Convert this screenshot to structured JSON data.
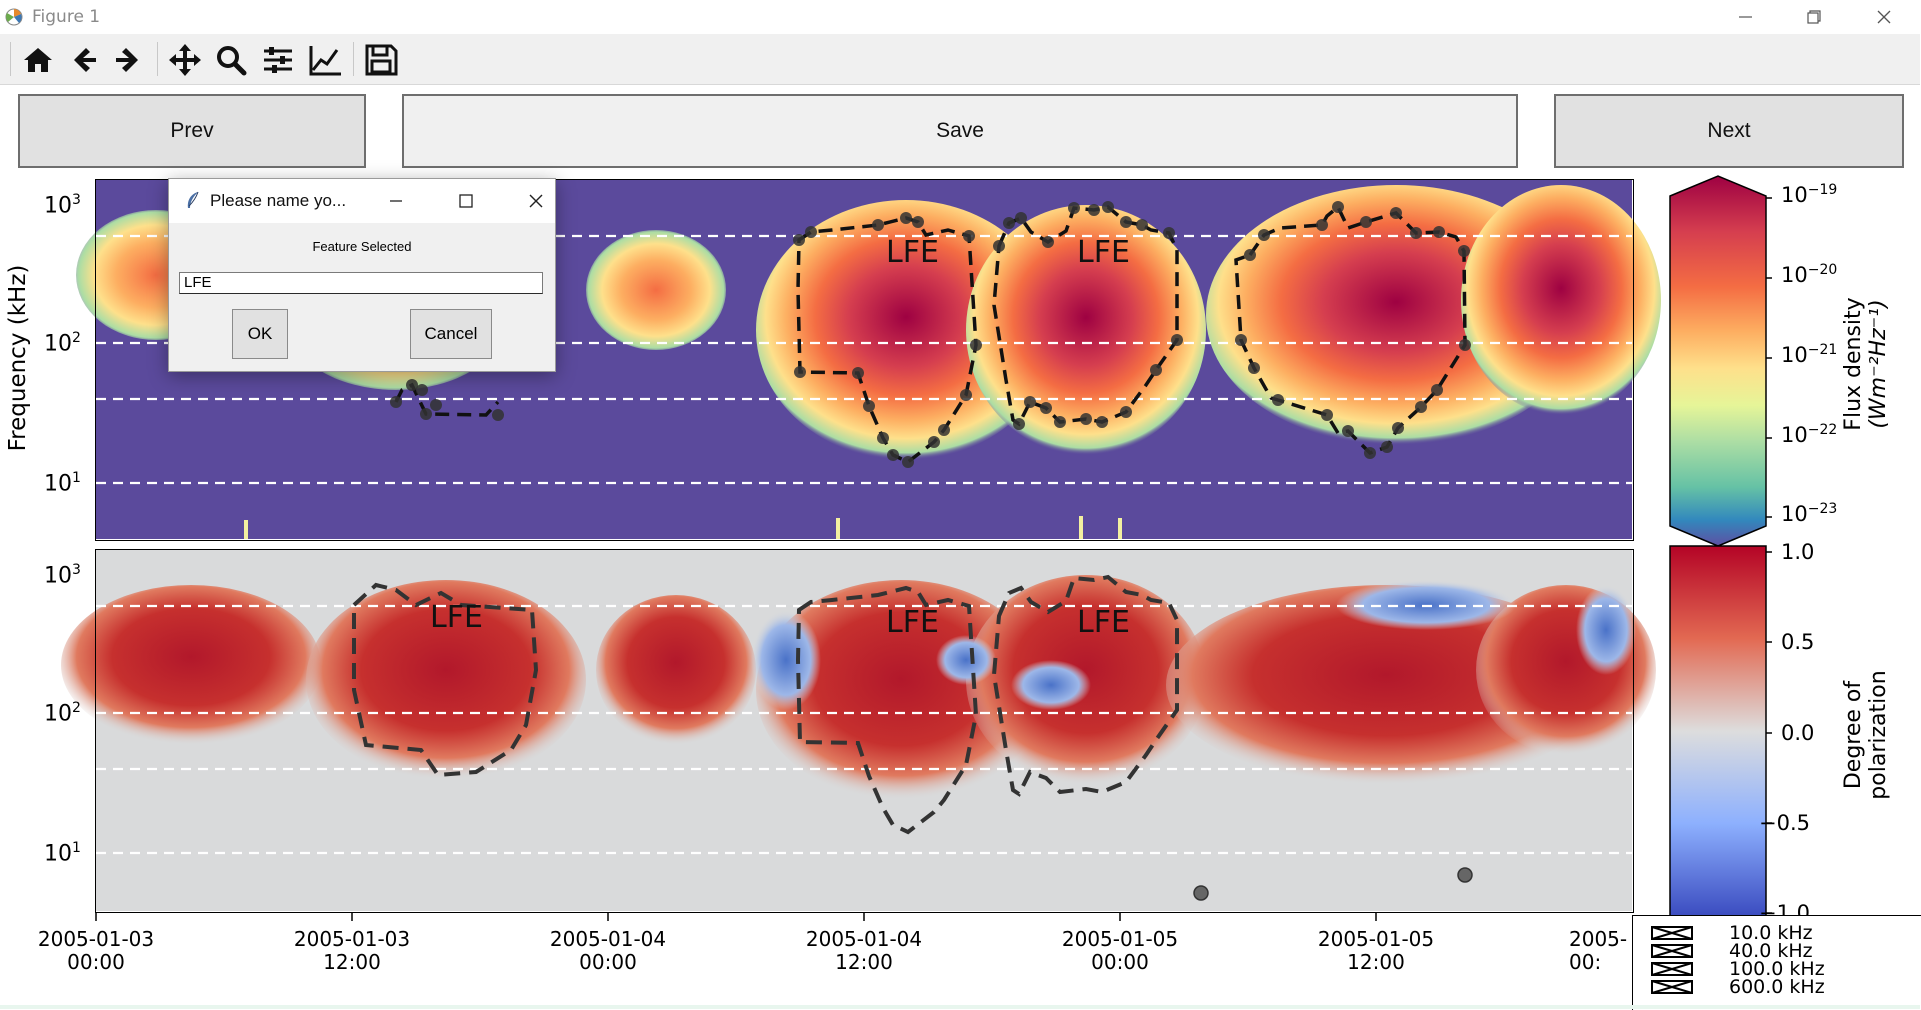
{
  "window": {
    "title": "Figure 1"
  },
  "toolbar": {
    "icons": [
      "home-icon",
      "back-arrow-icon",
      "forward-arrow-icon",
      "pan-icon",
      "zoom-icon",
      "configure-subplots-icon",
      "edit-axis-icon",
      "save-icon"
    ]
  },
  "buttons": {
    "prev": "Prev",
    "save": "Save",
    "next": "Next"
  },
  "top_axis": {
    "ylabel": "Frequency (kHz)",
    "yticks": [
      {
        "base": "10",
        "exp": "3"
      },
      {
        "base": "10",
        "exp": "2"
      },
      {
        "base": "10",
        "exp": "1"
      }
    ]
  },
  "bottom_axis": {
    "yticks": [
      {
        "base": "10",
        "exp": "3"
      },
      {
        "base": "10",
        "exp": "2"
      },
      {
        "base": "10",
        "exp": "1"
      }
    ]
  },
  "xticks": [
    {
      "date": "2005-01-03",
      "time": "00:00"
    },
    {
      "date": "2005-01-03",
      "time": "12:00"
    },
    {
      "date": "2005-01-04",
      "time": "00:00"
    },
    {
      "date": "2005-01-04",
      "time": "12:00"
    },
    {
      "date": "2005-01-05",
      "time": "00:00"
    },
    {
      "date": "2005-01-05",
      "time": "12:00"
    },
    {
      "date": "2005-",
      "time": "00:"
    }
  ],
  "feature_labels": [
    "LFE",
    "LFE",
    "LFE",
    "LFE",
    "LFE"
  ],
  "flux_colorbar": {
    "label_line1": "Flux density",
    "label_line2": "(Wm⁻²Hz⁻¹)",
    "ticks": [
      {
        "base": "10",
        "exp": "−19"
      },
      {
        "base": "10",
        "exp": "−20"
      },
      {
        "base": "10",
        "exp": "−21"
      },
      {
        "base": "10",
        "exp": "−22"
      },
      {
        "base": "10",
        "exp": "−23"
      }
    ]
  },
  "polarization_colorbar": {
    "label_line1": "Degree of",
    "label_line2": "polarization",
    "ticks": [
      "1.0",
      "0.5",
      "0.0",
      "−0.5",
      "−1.0"
    ]
  },
  "legend": {
    "items": [
      "10.0 kHz",
      "40.0 kHz",
      "100.0 kHz",
      "600.0 kHz"
    ]
  },
  "dialog": {
    "title": "Please name yo...",
    "prompt": "Feature Selected",
    "entry_value": "LFE",
    "ok": "OK",
    "cancel": "Cancel"
  },
  "colors": {
    "spectrogram_background": "#5b4a9c",
    "polarization_background": "#d9dadb",
    "polygon_line": "#222222"
  }
}
